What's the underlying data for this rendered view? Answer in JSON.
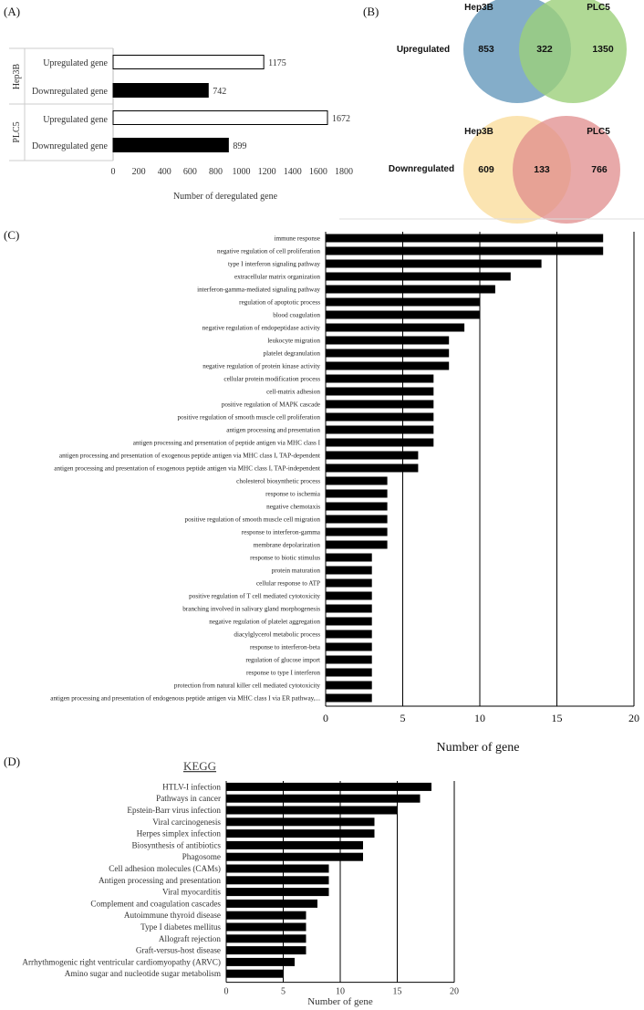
{
  "panels": {
    "a": "(A)",
    "b": "(B)",
    "c": "(C)",
    "d": "(D)"
  },
  "colors": {
    "bar_dark": "#000000",
    "bar_light": "#ffffff",
    "venn_hep3b_up": "#6f9fc0",
    "venn_plc5_up": "#9cd07a",
    "venn_hep3b_down": "#fbe1a8",
    "venn_plc5_down": "#e08c8c"
  },
  "chart_data": [
    {
      "id": "A",
      "type": "bar",
      "orientation": "horizontal",
      "groups": [
        "Hep3B",
        "PLC5"
      ],
      "categories": [
        "Upregulated gene",
        "Downregulated gene",
        "Upregulated gene",
        "Downregulated gene"
      ],
      "group_of_category": [
        "Hep3B",
        "Hep3B",
        "PLC5",
        "PLC5"
      ],
      "values": [
        1175,
        742,
        1672,
        899
      ],
      "data_labels": [
        "1175",
        "742",
        "1672",
        "899"
      ],
      "fill": [
        "white",
        "black",
        "white",
        "black"
      ],
      "xlabel": "Number of deregulated gene",
      "xlim": [
        0,
        1800
      ],
      "xticks": [
        "0",
        "200",
        "400",
        "600",
        "800",
        "1000",
        "1200",
        "1400",
        "1600",
        "1800"
      ]
    },
    {
      "id": "B",
      "type": "venn",
      "sets": [
        {
          "row": "Upregulated",
          "left": "Hep3B",
          "right": "PLC5",
          "left_only": "853",
          "overlap": "322",
          "right_only": "1350"
        },
        {
          "row": "Downregulated",
          "left": "Hep3B",
          "right": "PLC5",
          "left_only": "609",
          "overlap": "133",
          "right_only": "766"
        }
      ]
    },
    {
      "id": "C",
      "type": "bar",
      "orientation": "horizontal",
      "categories": [
        "immune response",
        "negative regulation of cell proliferation",
        "type I interferon signaling pathway",
        "extracellular matrix organization",
        "interferon-gamma-mediated signaling pathway",
        "regulation of apoptotic process",
        "blood coagulation",
        "negative regulation of endopeptidase activity",
        "leukocyte migration",
        "platelet degranulation",
        "negative regulation of protein kinase activity",
        "cellular protein modification process",
        "cell-matrix adhesion",
        "positive regulation of MAPK cascade",
        "positive regulation of smooth muscle cell proliferation",
        "antigen processing and presentation",
        "antigen processing and presentation of peptide antigen via MHC class I",
        "antigen processing and presentation of exogenous peptide antigen via MHC class I, TAP-dependent",
        "antigen processing and presentation of exogenous peptide antigen via MHC class I, TAP-independent",
        "cholesterol biosynthetic process",
        "response to ischemia",
        "negative chemotaxis",
        "positive regulation of smooth muscle cell migration",
        "response to interferon-gamma",
        "membrane depolarization",
        "response to biotic stimulus",
        "protein maturation",
        "cellular response to ATP",
        "positive regulation of T cell mediated cytotoxicity",
        "branching involved in salivary gland morphogenesis",
        "negative regulation of platelet aggregation",
        "diacylglycerol metabolic process",
        "response to interferon-beta",
        "regulation of glucose import",
        "response to type I interferon",
        "protection from natural killer cell mediated cytotoxicity",
        "antigen processing and presentation of endogenous peptide antigen via MHC class I via ER pathway,..."
      ],
      "values": [
        18,
        18,
        14,
        12,
        11,
        10,
        10,
        9,
        8,
        8,
        8,
        7,
        7,
        7,
        7,
        7,
        7,
        6,
        6,
        4,
        4,
        4,
        4,
        4,
        4,
        3,
        3,
        3,
        3,
        3,
        3,
        3,
        3,
        3,
        3,
        3,
        3
      ],
      "xlabel": "Number of gene",
      "xlim": [
        0,
        20
      ],
      "xticks": [
        "0",
        "5",
        "10",
        "15",
        "20"
      ],
      "grid": true
    },
    {
      "id": "D",
      "type": "bar",
      "orientation": "horizontal",
      "title": "KEGG",
      "categories": [
        "HTLV-I infection",
        "Pathways in cancer",
        "Epstein-Barr virus infection",
        "Viral carcinogenesis",
        "Herpes simplex infection",
        "Biosynthesis of antibiotics",
        "Phagosome",
        "Cell adhesion molecules (CAMs)",
        "Antigen processing and presentation",
        "Viral myocarditis",
        "Complement and coagulation cascades",
        "Autoimmune thyroid disease",
        "Type I diabetes mellitus",
        "Allograft rejection",
        "Graft-versus-host disease",
        "Arrhythmogenic right ventricular cardiomyopathy (ARVC)",
        "Amino sugar and nucleotide sugar metabolism"
      ],
      "values": [
        18,
        17,
        15,
        13,
        13,
        12,
        12,
        9,
        9,
        9,
        8,
        7,
        7,
        7,
        7,
        6,
        5
      ],
      "xlabel": "Number of gene",
      "xlim": [
        0,
        20
      ],
      "xticks": [
        "0",
        "5",
        "10",
        "15",
        "20"
      ],
      "grid": true
    }
  ]
}
